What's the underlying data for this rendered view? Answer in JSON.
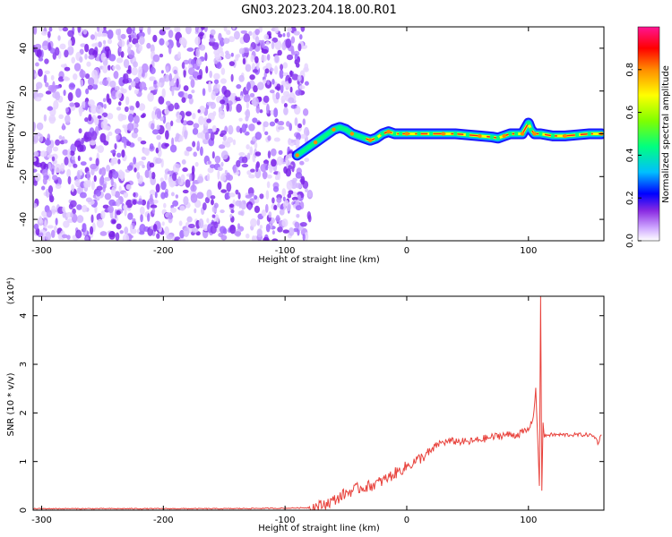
{
  "title": "GN03.2023.204.18.00.R01",
  "chart_data": [
    {
      "type": "heatmap",
      "xlabel": "Height of straight line (km)",
      "ylabel": "Frequency (Hz)",
      "xlim": [
        -307,
        162
      ],
      "ylim": [
        -50,
        50
      ],
      "xticks": [
        -300,
        -200,
        -100,
        0,
        100
      ],
      "yticks": [
        -40,
        -20,
        0,
        20,
        40
      ],
      "noise_region_x": [
        -307,
        -82
      ],
      "signal_track": {
        "x": [
          -90,
          -85,
          -80,
          -75,
          -70,
          -65,
          -60,
          -55,
          -50,
          -45,
          -40,
          -35,
          -30,
          -25,
          -20,
          -15,
          -10,
          -5,
          0,
          10,
          20,
          30,
          40,
          50,
          60,
          70,
          75,
          80,
          85,
          90,
          95,
          100,
          102,
          105,
          110,
          120,
          130,
          140,
          150,
          160
        ],
        "y": [
          -10,
          -8,
          -6,
          -4,
          -2,
          0,
          2,
          3,
          2,
          0,
          -1,
          -2,
          -3,
          -2,
          0,
          1,
          0,
          0,
          0,
          0,
          0,
          0,
          0,
          -0.5,
          -1,
          -1.5,
          -2,
          -1,
          0,
          0,
          0,
          5,
          2,
          0,
          0,
          -1,
          -1,
          -0.5,
          0,
          0
        ]
      },
      "colorbar": {
        "label": "Normalized spectral amplitude",
        "range": [
          0,
          1
        ],
        "ticks": [
          "0.0",
          "0.2",
          "0.4",
          "0.6",
          "0.8"
        ],
        "colors": [
          "#ffffff",
          "#cfa8ff",
          "#8a2be2",
          "#0000ff",
          "#00bfff",
          "#00ff80",
          "#7fff00",
          "#ffff00",
          "#ff8c00",
          "#ff0000",
          "#ff1493"
        ]
      }
    },
    {
      "type": "line",
      "xlabel": "Height of straight line (km)",
      "ylabel": "SNR (10 * v/v)",
      "y_multiplier": "(x10⁴)",
      "xlim": [
        -307,
        162
      ],
      "ylim": [
        0,
        4.4
      ],
      "xticks": [
        -300,
        -200,
        -100,
        0,
        100
      ],
      "yticks": [
        0,
        1,
        2,
        3,
        4
      ],
      "color": "#e8423c",
      "series": [
        {
          "x": [
            -307,
            -250,
            -200,
            -150,
            -100,
            -80,
            -70,
            -60,
            -50,
            -40,
            -30,
            -20,
            -10,
            0,
            10,
            20,
            25,
            30,
            40,
            50,
            60,
            70,
            80,
            90,
            95,
            100,
            104,
            106,
            108,
            109,
            110,
            111,
            112,
            113,
            115,
            120,
            130,
            140,
            150,
            155,
            157,
            160
          ],
          "y": [
            0.03,
            0.03,
            0.03,
            0.03,
            0.04,
            0.05,
            0.1,
            0.2,
            0.35,
            0.45,
            0.5,
            0.6,
            0.75,
            0.9,
            1.05,
            1.2,
            1.35,
            1.4,
            1.42,
            1.4,
            1.45,
            1.5,
            1.55,
            1.55,
            1.6,
            1.65,
            1.9,
            2.5,
            1.2,
            0.5,
            4.4,
            0.4,
            1.8,
            1.5,
            1.55,
            1.55,
            1.55,
            1.55,
            1.55,
            1.5,
            1.38,
            1.55
          ]
        }
      ]
    }
  ]
}
